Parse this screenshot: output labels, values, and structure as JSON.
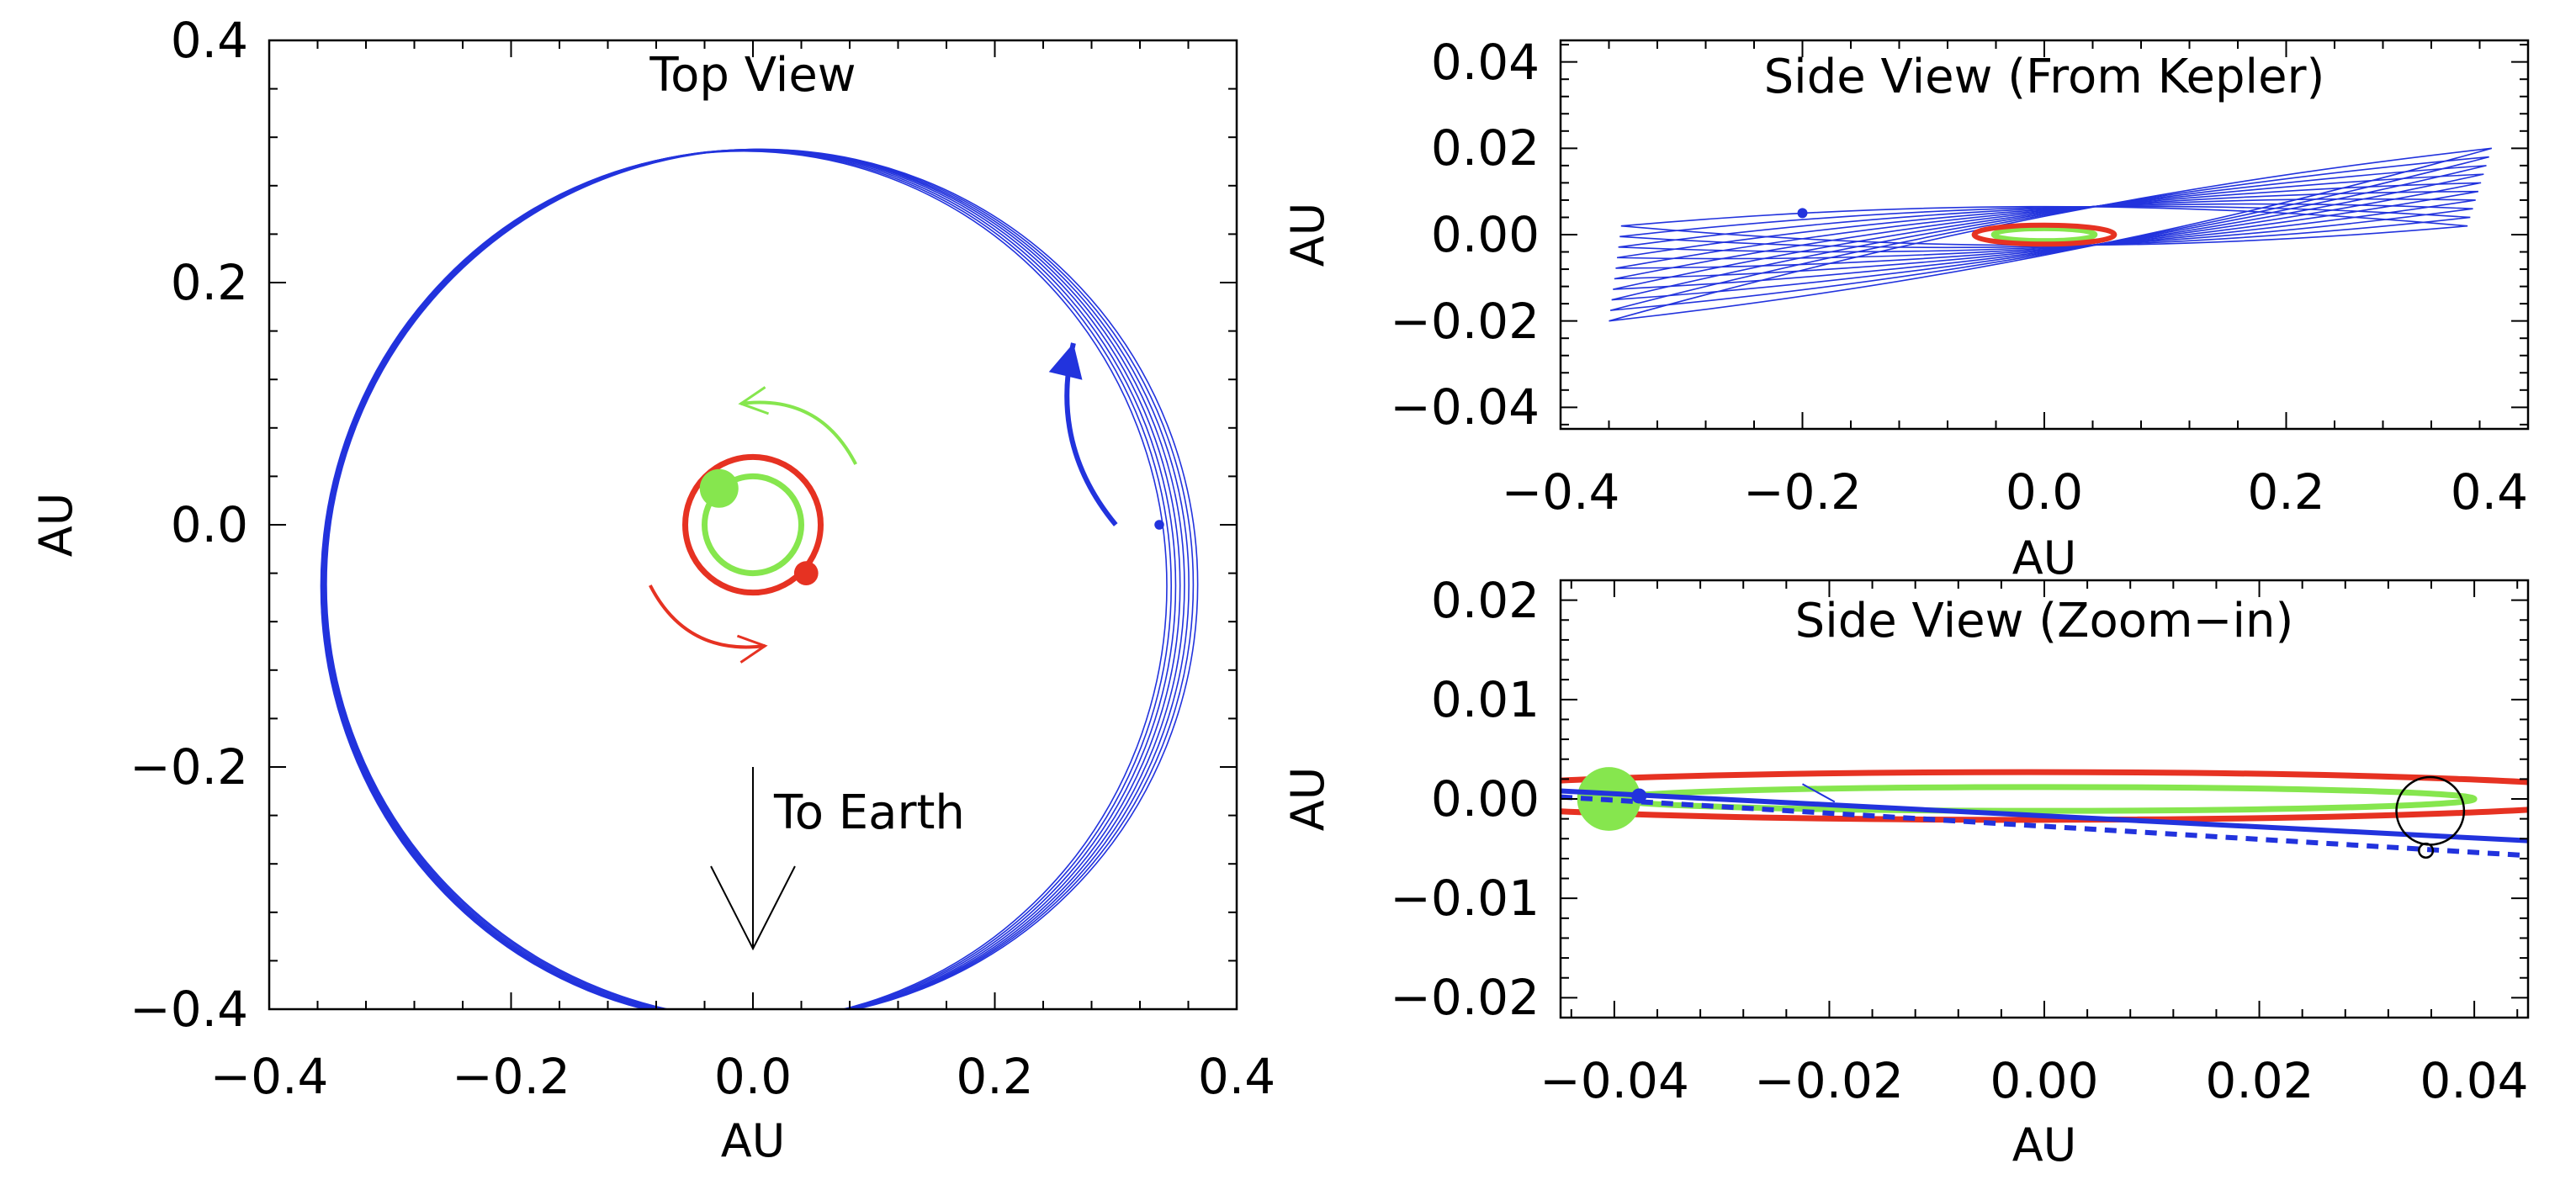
{
  "colors": {
    "planet_b": "#2233dd",
    "star_a": "#e63222",
    "star_b": "#86e64e",
    "axes": "#000000"
  },
  "chart_data": [
    {
      "type": "line",
      "title": "Top View",
      "xlabel": "AU",
      "ylabel": "AU",
      "xlim": [
        -0.4,
        0.4
      ],
      "ylim": [
        -0.4,
        0.4
      ],
      "xticks": [
        -0.4,
        -0.2,
        0.0,
        0.2,
        0.4
      ],
      "yticks": [
        -0.4,
        -0.2,
        0.0,
        0.2,
        0.4
      ],
      "xtick_labels": [
        "−0.4",
        "−0.2",
        "0.0",
        "0.2",
        "0.4"
      ],
      "ytick_labels": [
        "−0.4",
        "−0.2",
        "0.0",
        "0.2",
        "0.4"
      ],
      "grid": false,
      "series": [
        {
          "name": "planet orbits (top)",
          "color": "#2233dd",
          "center": [
            0.0,
            -0.05
          ],
          "rx": 0.355,
          "ry": 0.36,
          "count": 8,
          "spread": 0.015
        },
        {
          "name": "star A orbit",
          "color": "#e63222",
          "center": [
            0.0,
            0.0
          ],
          "rx": 0.056,
          "ry": 0.056
        },
        {
          "name": "star B orbit",
          "color": "#86e64e",
          "center": [
            0.0,
            0.0
          ],
          "rx": 0.04,
          "ry": 0.04
        }
      ],
      "markers": [
        {
          "name": "star B",
          "x": -0.028,
          "y": 0.03,
          "r": 0.016,
          "color": "#86e64e"
        },
        {
          "name": "star A",
          "x": 0.044,
          "y": -0.04,
          "r": 0.01,
          "color": "#e63222"
        },
        {
          "name": "planet",
          "x": 0.336,
          "y": 0.0,
          "r": 0.004,
          "color": "#2233dd"
        }
      ],
      "arrows": [
        {
          "name": "planet direction",
          "color": "#2233dd",
          "from": [
            0.3,
            0.0
          ],
          "to": [
            0.265,
            0.15
          ]
        },
        {
          "name": "star B direction",
          "color": "#86e64e",
          "from": [
            0.085,
            0.05
          ],
          "to": [
            -0.01,
            0.1
          ]
        },
        {
          "name": "star A direction",
          "color": "#e63222",
          "from": [
            -0.085,
            -0.05
          ],
          "to": [
            0.01,
            -0.1
          ]
        },
        {
          "name": "to earth",
          "color": "#000000",
          "from": [
            0.0,
            -0.2
          ],
          "to": [
            0.0,
            -0.35
          ]
        }
      ],
      "annotations": [
        {
          "text": "To Earth",
          "x": 0.02,
          "y": -0.24
        }
      ]
    },
    {
      "type": "line",
      "title": "Side View (From Kepler)",
      "xlabel": "AU",
      "ylabel": "AU",
      "xlim": [
        -0.4,
        0.4
      ],
      "ylim": [
        -0.045,
        0.045
      ],
      "xticks": [
        -0.4,
        -0.2,
        0.0,
        0.2,
        0.4
      ],
      "yticks": [
        -0.04,
        -0.02,
        0.0,
        0.02,
        0.04
      ],
      "xtick_labels": [
        "−0.4",
        "−0.2",
        "0.0",
        "0.2",
        "0.4"
      ],
      "ytick_labels": [
        "−0.04",
        "−0.02",
        "0.00",
        "0.02",
        "0.04"
      ],
      "grid": false,
      "series": [
        {
          "name": "planet orbits (side)",
          "color": "#2233dd",
          "count": 10,
          "x_range": [
            -0.36,
            0.37
          ],
          "y_left": [
            -0.02,
            0.002
          ],
          "y_right": [
            0.02,
            0.002
          ],
          "half_thickness": 0.006
        },
        {
          "name": "star A orbit",
          "color": "#e63222",
          "center": [
            0.0,
            0.0
          ],
          "rx": 0.058,
          "ry": 0.0022
        },
        {
          "name": "star B orbit",
          "color": "#86e64e",
          "center": [
            0.0,
            0.0
          ],
          "rx": 0.042,
          "ry": 0.0014
        }
      ],
      "markers": [
        {
          "name": "planet",
          "x": -0.2,
          "y": 0.005,
          "r": 0.004,
          "color": "#2233dd"
        }
      ]
    },
    {
      "type": "line",
      "title": "Side View (Zoom−in)",
      "xlabel": "AU",
      "ylabel": "AU",
      "xlim": [
        -0.045,
        0.045
      ],
      "ylim": [
        -0.022,
        0.022
      ],
      "xticks": [
        -0.04,
        -0.02,
        0.0,
        0.02,
        0.04
      ],
      "yticks": [
        -0.02,
        -0.01,
        0.0,
        0.01,
        0.02
      ],
      "xtick_labels": [
        "−0.04",
        "−0.02",
        "0.00",
        "0.02",
        "0.04"
      ],
      "ytick_labels": [
        "−0.02",
        "−0.01",
        "0.00",
        "0.01",
        "0.02"
      ],
      "grid": false,
      "series": [
        {
          "name": "star A orbit",
          "color": "#e63222",
          "center": [
            -0.0015,
            0.0003
          ],
          "rx": 0.057,
          "ry": 0.0024
        },
        {
          "name": "star B orbit",
          "color": "#86e64e",
          "center": [
            0.0,
            0.0
          ],
          "rx": 0.04,
          "ry": 0.0012
        },
        {
          "name": "planet path",
          "color": "#2233dd",
          "dashed": false,
          "x": [
            -0.045,
            0.045
          ],
          "y": [
            0.0008,
            -0.0042
          ]
        },
        {
          "name": "planet path (dashed)",
          "color": "#2233dd",
          "dashed": true,
          "x": [
            -0.045,
            0.045
          ],
          "y": [
            0.0002,
            -0.0057
          ]
        }
      ],
      "markers": [
        {
          "name": "star B",
          "x": -0.0405,
          "y": 0.0,
          "r": 0.0032,
          "color": "#86e64e"
        },
        {
          "name": "planet",
          "x": -0.0377,
          "y": 0.0003,
          "r": 0.0008,
          "color": "#2233dd"
        }
      ],
      "outline_circles": [
        {
          "name": "reference circle",
          "x": 0.0359,
          "y": -0.0012,
          "r": 0.0034
        },
        {
          "name": "reference small circle",
          "x": 0.0355,
          "y": -0.0052,
          "r": 0.0007
        }
      ]
    }
  ]
}
